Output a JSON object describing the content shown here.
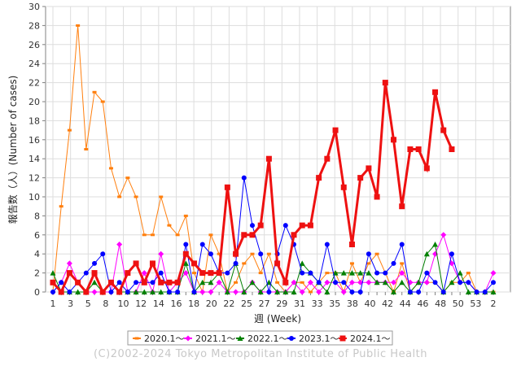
{
  "chart_data": {
    "type": "line",
    "xlabel": "週 (Week)",
    "ylabel": "報告数（人）(Number of cases)",
    "ylim": [
      0,
      30
    ],
    "yticks": [
      0,
      2,
      4,
      6,
      8,
      10,
      12,
      14,
      16,
      18,
      20,
      22,
      24,
      26,
      28,
      30
    ],
    "x_tick_labels": [
      "1",
      "3",
      "5",
      "8",
      "10",
      "12",
      "14",
      "16",
      "18",
      "20",
      "22",
      "25",
      "27",
      "29",
      "31",
      "33",
      "35",
      "38",
      "40",
      "42",
      "44",
      "46",
      "48",
      "50",
      "53",
      "2"
    ],
    "grid": true,
    "legend_position": "bottom",
    "copyright": "(C)2002-2024 Tokyo Metropolitan Institute of Public Health",
    "series": [
      {
        "name": "2020.1〜",
        "color": "#ff7f0e",
        "marker": "square-small",
        "values": [
          0,
          9,
          17,
          28,
          15,
          21,
          20,
          13,
          10,
          12,
          10,
          6,
          6,
          10,
          7,
          6,
          8,
          2,
          0,
          6,
          4,
          0,
          1,
          3,
          4,
          2,
          4,
          1,
          0,
          1,
          1,
          0,
          1,
          2,
          2,
          0,
          3,
          1,
          3,
          4,
          2,
          0,
          3,
          0,
          1,
          1,
          1,
          0,
          1,
          1,
          2,
          0,
          0,
          0
        ]
      },
      {
        "name": "2021.1〜",
        "color": "#ff00ff",
        "marker": "diamond",
        "values": [
          0,
          1,
          3,
          1,
          0,
          0,
          0,
          0,
          5,
          0,
          0,
          2,
          0,
          4,
          0,
          1,
          2,
          0,
          0,
          0,
          1,
          0,
          0,
          0,
          1,
          0,
          0,
          0,
          0,
          1,
          0,
          1,
          0,
          1,
          1,
          0,
          1,
          1,
          1,
          1,
          1,
          1,
          2,
          1,
          1,
          1,
          4,
          6,
          3,
          1,
          1,
          0,
          0,
          2
        ]
      },
      {
        "name": "2022.1〜",
        "color": "#008000",
        "marker": "triangle",
        "values": [
          2,
          0,
          0,
          0,
          0,
          1,
          0,
          1,
          0,
          0,
          0,
          0,
          0,
          0,
          0,
          0,
          3,
          0,
          1,
          1,
          2,
          0,
          3,
          0,
          1,
          0,
          1,
          0,
          0,
          0,
          3,
          2,
          1,
          0,
          2,
          2,
          2,
          2,
          2,
          1,
          1,
          0,
          1,
          0,
          1,
          4,
          5,
          0,
          1,
          2,
          0,
          0,
          0,
          0
        ]
      },
      {
        "name": "2023.1〜",
        "color": "#0000ff",
        "marker": "circle",
        "values": [
          0,
          1,
          0,
          1,
          2,
          3,
          4,
          0,
          1,
          0,
          1,
          1,
          1,
          2,
          0,
          0,
          5,
          0,
          5,
          4,
          2,
          2,
          3,
          12,
          7,
          4,
          0,
          4,
          7,
          5,
          2,
          2,
          1,
          5,
          1,
          1,
          0,
          0,
          4,
          2,
          2,
          3,
          5,
          0,
          0,
          2,
          1,
          0,
          4,
          1,
          1,
          0,
          0,
          1
        ]
      },
      {
        "name": "2024.1〜",
        "color": "#ee1111",
        "marker": "square",
        "values": [
          1,
          0,
          2,
          1,
          0,
          2,
          0,
          1,
          0,
          2,
          3,
          1,
          3,
          1,
          1,
          1,
          4,
          3,
          2,
          2,
          2,
          11,
          4,
          6,
          6,
          7,
          14,
          3,
          1,
          6,
          7,
          7,
          12,
          14,
          17,
          11,
          5,
          12,
          13,
          10,
          22,
          16,
          9,
          15,
          15,
          13,
          21,
          17,
          15
        ]
      }
    ]
  }
}
